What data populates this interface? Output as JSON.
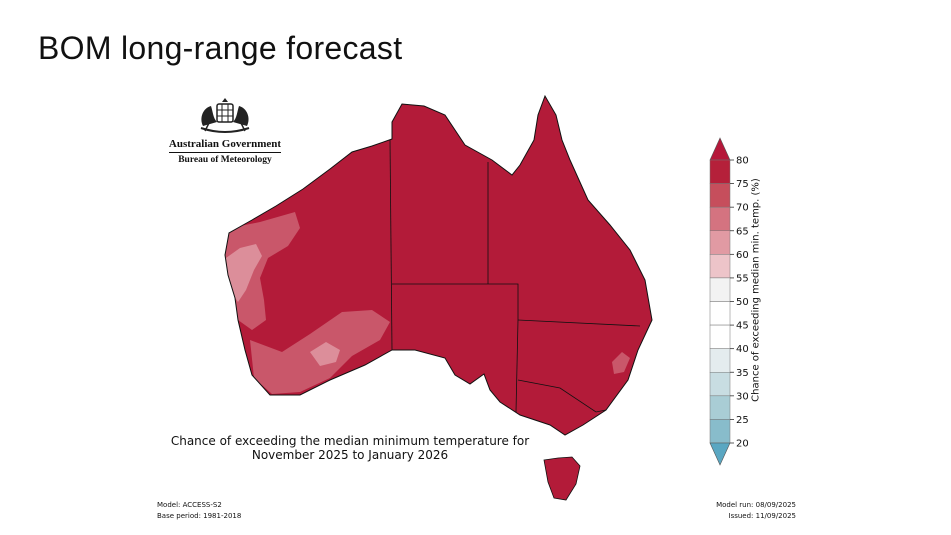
{
  "slide_title": "BOM long-range forecast",
  "logo": {
    "line1": "Australian Government",
    "line2": "Bureau of Meteorology"
  },
  "caption": {
    "line1": "Chance of exceeding the median minimum temperature for",
    "line2": "November 2025 to January 2026"
  },
  "footer_left": {
    "model": "Model: ACCESS-S2",
    "base_period": "Base period: 1981-2018"
  },
  "footer_right": {
    "model_run": "Model run: 08/09/2025",
    "issued": "Issued: 11/09/2025"
  },
  "colorbar": {
    "title": "Chance of exceeding median min. temp. (%)",
    "ticks": [
      "80",
      "75",
      "70",
      "65",
      "60",
      "55",
      "50",
      "45",
      "40",
      "35",
      "30",
      "25",
      "20"
    ],
    "colors": [
      "#b5203a",
      "#c64e5c",
      "#d47380",
      "#e19aa3",
      "#edc4c9",
      "#f2f2f2",
      "#ffffff",
      "#ffffff",
      "#e4ecee",
      "#c8dde2",
      "#a9cdd5",
      "#88bccb",
      "#64aac2"
    ],
    "top_arrow_color": "#b5183a",
    "bottom_arrow_color": "#5aa7c2"
  },
  "map_colors": {
    "strong": "#b31b39",
    "mid": "#c9576a",
    "light": "#dc8e9a"
  }
}
